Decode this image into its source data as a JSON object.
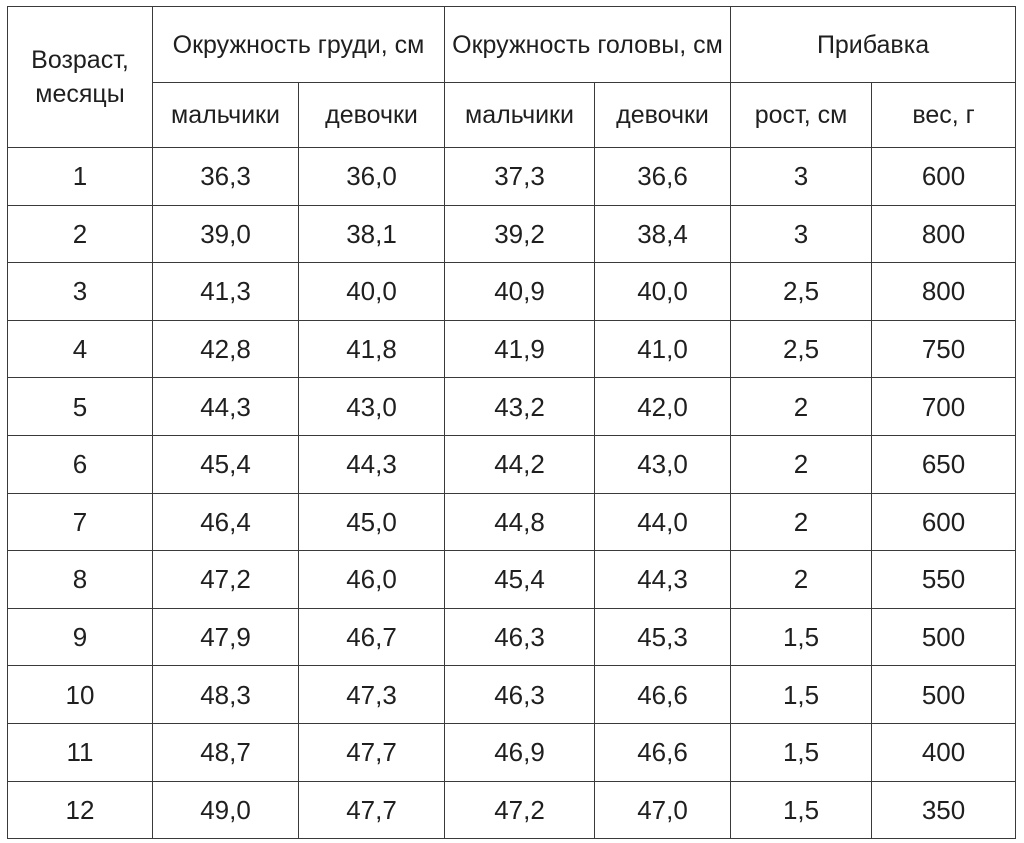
{
  "table": {
    "headers": {
      "age": "Возраст, месяцы",
      "chest": "Окружность груди, см",
      "head": "Окружность головы, см",
      "gain": "Прибавка",
      "chest_boys": "мальчики",
      "chest_girls": "девочки",
      "head_boys": "мальчики",
      "head_girls": "девочки",
      "gain_height": "рост, см",
      "gain_weight": "вес, г"
    },
    "rows": [
      [
        "1",
        "36,3",
        "36,0",
        "37,3",
        "36,6",
        "3",
        "600"
      ],
      [
        "2",
        "39,0",
        "38,1",
        "39,2",
        "38,4",
        "3",
        "800"
      ],
      [
        "3",
        "41,3",
        "40,0",
        "40,9",
        "40,0",
        "2,5",
        "800"
      ],
      [
        "4",
        "42,8",
        "41,8",
        "41,9",
        "41,0",
        "2,5",
        "750"
      ],
      [
        "5",
        "44,3",
        "43,0",
        "43,2",
        "42,0",
        "2",
        "700"
      ],
      [
        "6",
        "45,4",
        "44,3",
        "44,2",
        "43,0",
        "2",
        "650"
      ],
      [
        "7",
        "46,4",
        "45,0",
        "44,8",
        "44,0",
        "2",
        "600"
      ],
      [
        "8",
        "47,2",
        "46,0",
        "45,4",
        "44,3",
        "2",
        "550"
      ],
      [
        "9",
        "47,9",
        "46,7",
        "46,3",
        "45,3",
        "1,5",
        "500"
      ],
      [
        "10",
        "48,3",
        "47,3",
        "46,3",
        "46,6",
        "1,5",
        "500"
      ],
      [
        "11",
        "48,7",
        "47,7",
        "46,9",
        "46,6",
        "1,5",
        "400"
      ],
      [
        "12",
        "49,0",
        "47,7",
        "47,2",
        "47,0",
        "1,5",
        "350"
      ]
    ]
  }
}
